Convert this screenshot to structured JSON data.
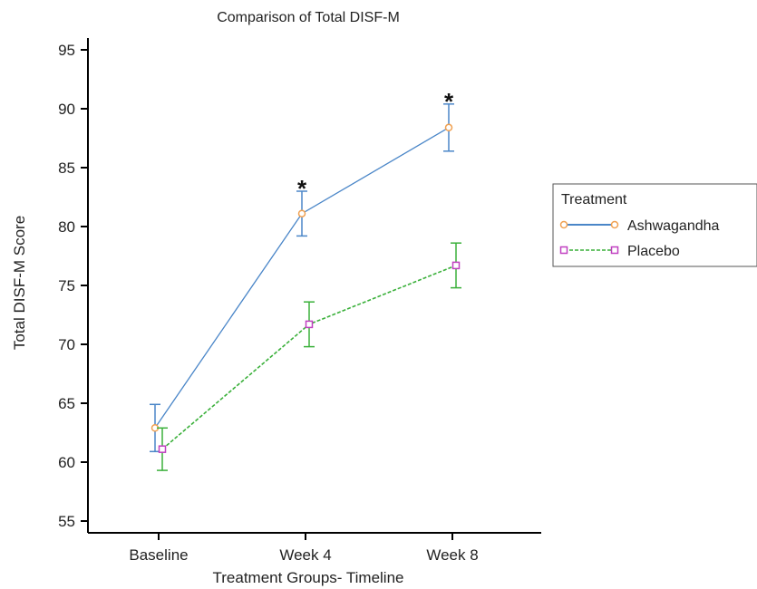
{
  "chart_data": {
    "type": "line",
    "title": "Comparison of Total DISF-M",
    "xlabel": "Treatment Groups- Timeline",
    "ylabel": "Total DISF-M Score",
    "categories": [
      "Baseline",
      "Week 4",
      "Week 8"
    ],
    "ylim": [
      54,
      96
    ],
    "yticks": [
      55,
      60,
      65,
      70,
      75,
      80,
      85,
      90,
      95
    ],
    "grid": false,
    "legend": {
      "title": "Treatment",
      "placement": "right"
    },
    "significance_marker": "*",
    "significance_at": [
      "Week 4",
      "Week 8"
    ],
    "series": [
      {
        "name": "Ashwagandha",
        "values": [
          62.9,
          81.1,
          88.4
        ],
        "error": [
          2.0,
          1.9,
          2.0
        ],
        "line_color": "#4a86c8",
        "marker_color": "#f0a050",
        "marker": "circle",
        "line_style": "solid"
      },
      {
        "name": "Placebo",
        "values": [
          61.1,
          71.7,
          76.7
        ],
        "error": [
          1.8,
          1.9,
          1.9
        ],
        "line_color": "#3ab03a",
        "marker_color": "#c040c0",
        "marker": "square",
        "line_style": "dashed"
      }
    ]
  }
}
